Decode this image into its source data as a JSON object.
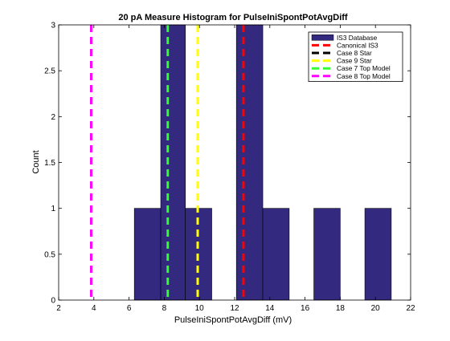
{
  "chart_data": {
    "type": "bar",
    "title": "20 pA Measure Histogram for PulseIniSpontPotAvgDiff",
    "xlabel": "PulseIniSpontPotAvgDiff (mV)",
    "ylabel": "Count",
    "xlim": [
      2,
      22
    ],
    "ylim": [
      0,
      3
    ],
    "xticks": [
      "2",
      "4",
      "6",
      "8",
      "10",
      "12",
      "14",
      "16",
      "18",
      "20",
      "22"
    ],
    "yticks": [
      "0",
      "0.5",
      "1",
      "1.5",
      "2",
      "2.5",
      "3"
    ],
    "grid": false,
    "legend_position": "top-right",
    "bar_color": "#332a80",
    "bins": [
      {
        "x0": 6.3,
        "x1": 7.8,
        "count": 1
      },
      {
        "x0": 7.8,
        "x1": 9.2,
        "count": 3
      },
      {
        "x0": 9.2,
        "x1": 10.7,
        "count": 1
      },
      {
        "x0": 10.7,
        "x1": 12.1,
        "count": 0
      },
      {
        "x0": 12.1,
        "x1": 13.6,
        "count": 3
      },
      {
        "x0": 13.6,
        "x1": 15.1,
        "count": 1
      },
      {
        "x0": 15.1,
        "x1": 16.5,
        "count": 0
      },
      {
        "x0": 16.5,
        "x1": 18.0,
        "count": 1
      },
      {
        "x0": 18.0,
        "x1": 19.4,
        "count": 0
      },
      {
        "x0": 19.4,
        "x1": 20.9,
        "count": 1
      }
    ],
    "vlines": [
      {
        "name": "Canonical IS3",
        "x": 12.5,
        "color": "#ff0000"
      },
      {
        "name": "Case 8 Star",
        "x": 8.2,
        "color": "#000000"
      },
      {
        "name": "Case 9 Star",
        "x": 9.9,
        "color": "#ffff00"
      },
      {
        "name": "Case 7 Top Model",
        "x": 8.2,
        "color": "#33ff33"
      },
      {
        "name": "Case 8 Top Model",
        "x": 3.85,
        "color": "#ff00ff"
      }
    ],
    "legend": [
      "IS3 Database",
      "Canonical IS3",
      "Case 8 Star",
      "Case 9 Star",
      "Case 7 Top Model",
      "Case 8 Top Model"
    ]
  }
}
